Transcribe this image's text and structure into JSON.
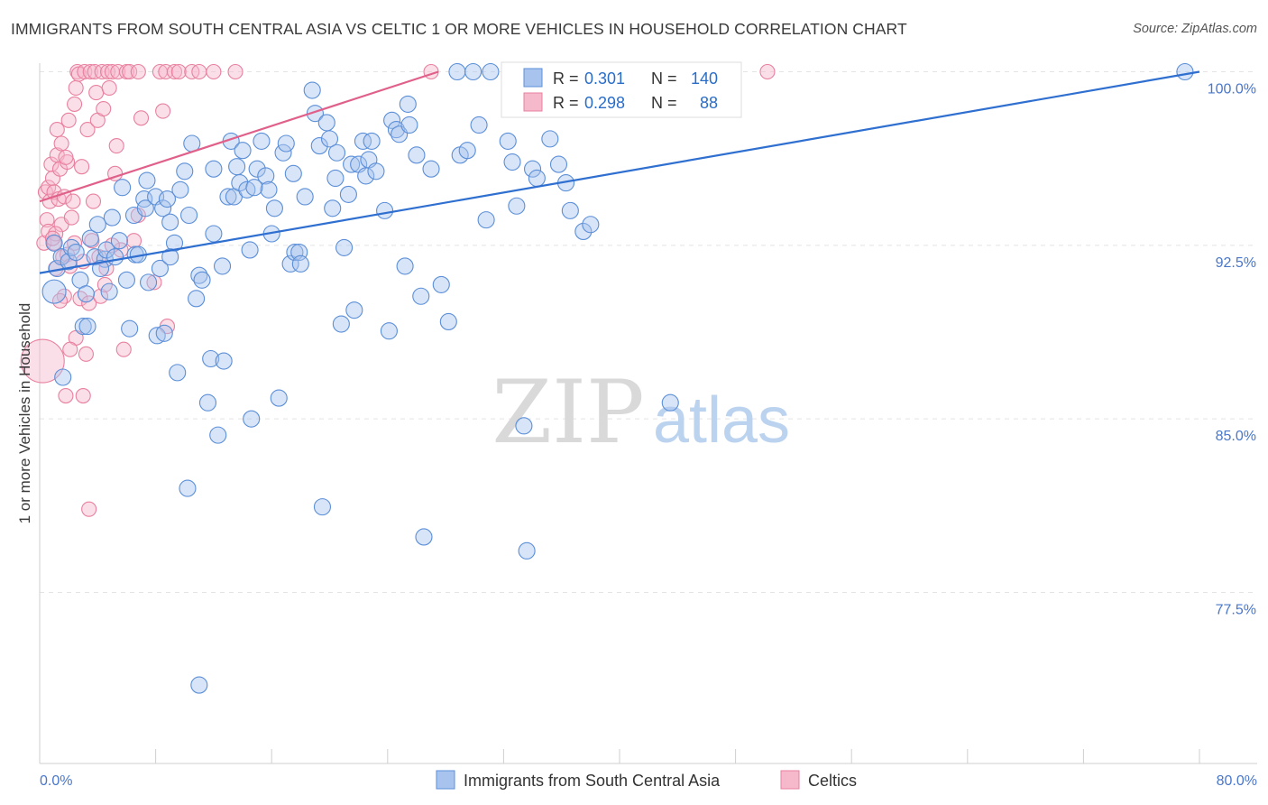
{
  "title": "IMMIGRANTS FROM SOUTH CENTRAL ASIA VS CELTIC 1 OR MORE VEHICLES IN HOUSEHOLD CORRELATION CHART",
  "source": "Source: ZipAtlas.com",
  "watermark": {
    "zip": "ZIP",
    "atlas": "atlas"
  },
  "colors": {
    "blue_fill": "#a8c4ee",
    "blue_stroke": "#5b8fd8",
    "blue_line": "#2f6fd0",
    "pink_fill": "#f6b9cc",
    "pink_stroke": "#e8809f",
    "pink_line": "#e0608a",
    "axis_label": "#4a77c9",
    "grid": "#dddddd"
  },
  "legend": {
    "row1": {
      "r_label": "R =",
      "r_value": "0.301",
      "n_label": "N =",
      "n_value": "140"
    },
    "row2": {
      "r_label": "R =",
      "r_value": "0.298",
      "n_label": "N =",
      "n_value": "88"
    }
  },
  "chart_data": {
    "type": "scatter",
    "title": "IMMIGRANTS FROM SOUTH CENTRAL ASIA VS CELTIC 1 OR MORE VEHICLES IN HOUSEHOLD CORRELATION CHART",
    "xlabel": "",
    "ylabel": "1 or more Vehicles in Household",
    "x_tick_labels": [
      "0.0%",
      "80.0%"
    ],
    "y_tick_labels": [
      "100.0%",
      "92.5%",
      "85.0%",
      "77.5%"
    ],
    "y_ticks": [
      100.0,
      92.5,
      85.0,
      77.5
    ],
    "xlim": [
      0,
      80
    ],
    "ylim": [
      71.5,
      100.5
    ],
    "grid": true,
    "legend_placement": "top-center",
    "series": [
      {
        "name": "Immigrants from South Central Asia",
        "color": "#5b8fd8",
        "trend": {
          "x": [
            0,
            80
          ],
          "y": [
            91.3,
            100.0
          ]
        },
        "points": [
          [
            1.0,
            92.6
          ],
          [
            1.2,
            91.5
          ],
          [
            1.5,
            92.0
          ],
          [
            1.0,
            90.5
          ],
          [
            1.6,
            86.8
          ],
          [
            2.0,
            91.8
          ],
          [
            2.2,
            92.4
          ],
          [
            2.8,
            91.0
          ],
          [
            3.0,
            89.0
          ],
          [
            3.2,
            90.4
          ],
          [
            3.5,
            92.8
          ],
          [
            3.8,
            92.0
          ],
          [
            4.0,
            93.4
          ],
          [
            4.5,
            91.9
          ],
          [
            4.6,
            92.3
          ],
          [
            4.8,
            90.5
          ],
          [
            5.0,
            93.7
          ],
          [
            5.2,
            92.0
          ],
          [
            5.5,
            92.7
          ],
          [
            5.7,
            95.0
          ],
          [
            6.0,
            91.0
          ],
          [
            6.2,
            88.9
          ],
          [
            6.5,
            93.8
          ],
          [
            6.6,
            92.1
          ],
          [
            6.8,
            92.1
          ],
          [
            7.2,
            94.5
          ],
          [
            7.3,
            94.1
          ],
          [
            7.4,
            95.3
          ],
          [
            7.5,
            90.9
          ],
          [
            8.0,
            94.6
          ],
          [
            8.1,
            88.6
          ],
          [
            8.3,
            91.5
          ],
          [
            8.5,
            94.1
          ],
          [
            8.6,
            88.7
          ],
          [
            8.8,
            94.5
          ],
          [
            9.0,
            93.5
          ],
          [
            9.3,
            92.6
          ],
          [
            9.5,
            87.0
          ],
          [
            9.7,
            94.9
          ],
          [
            10.0,
            95.7
          ],
          [
            10.2,
            82.0
          ],
          [
            10.3,
            93.8
          ],
          [
            10.5,
            96.9
          ],
          [
            10.8,
            90.2
          ],
          [
            11.0,
            91.2
          ],
          [
            11.2,
            91.0
          ],
          [
            11.6,
            85.7
          ],
          [
            11.8,
            87.6
          ],
          [
            12.0,
            95.8
          ],
          [
            12.3,
            84.3
          ],
          [
            12.6,
            91.6
          ],
          [
            12.7,
            87.5
          ],
          [
            13.0,
            94.6
          ],
          [
            13.2,
            97.0
          ],
          [
            13.4,
            94.6
          ],
          [
            13.6,
            95.9
          ],
          [
            13.8,
            95.2
          ],
          [
            14.0,
            96.6
          ],
          [
            14.3,
            94.9
          ],
          [
            14.5,
            92.3
          ],
          [
            14.6,
            85.0
          ],
          [
            15.0,
            95.8
          ],
          [
            15.3,
            97.0
          ],
          [
            15.6,
            95.5
          ],
          [
            15.8,
            94.9
          ],
          [
            16.0,
            93.0
          ],
          [
            16.2,
            94.1
          ],
          [
            16.5,
            85.9
          ],
          [
            16.8,
            96.5
          ],
          [
            17.0,
            96.9
          ],
          [
            17.3,
            91.7
          ],
          [
            17.5,
            95.6
          ],
          [
            17.6,
            92.2
          ],
          [
            17.9,
            92.2
          ],
          [
            18.0,
            91.7
          ],
          [
            18.3,
            94.6
          ],
          [
            18.8,
            99.2
          ],
          [
            19.0,
            98.2
          ],
          [
            19.3,
            96.8
          ],
          [
            19.5,
            81.2
          ],
          [
            19.8,
            97.8
          ],
          [
            20.0,
            97.1
          ],
          [
            20.2,
            94.1
          ],
          [
            20.4,
            95.4
          ],
          [
            20.8,
            89.1
          ],
          [
            21.0,
            92.4
          ],
          [
            21.3,
            94.7
          ],
          [
            21.5,
            96.0
          ],
          [
            21.7,
            89.7
          ],
          [
            22.0,
            96.0
          ],
          [
            22.3,
            97.0
          ],
          [
            22.5,
            95.5
          ],
          [
            22.7,
            96.2
          ],
          [
            23.2,
            95.7
          ],
          [
            23.8,
            94.0
          ],
          [
            24.1,
            88.8
          ],
          [
            24.3,
            97.9
          ],
          [
            24.6,
            97.5
          ],
          [
            24.8,
            97.3
          ],
          [
            25.2,
            91.6
          ],
          [
            25.4,
            98.6
          ],
          [
            25.5,
            97.7
          ],
          [
            26.0,
            96.4
          ],
          [
            26.3,
            90.3
          ],
          [
            26.5,
            79.9
          ],
          [
            27.7,
            90.8
          ],
          [
            28.2,
            89.2
          ],
          [
            28.8,
            100.0
          ],
          [
            29.0,
            96.4
          ],
          [
            29.5,
            96.6
          ],
          [
            29.9,
            100.0
          ],
          [
            30.3,
            97.7
          ],
          [
            30.8,
            93.6
          ],
          [
            31.1,
            100.0
          ],
          [
            32.3,
            97.0
          ],
          [
            32.6,
            96.1
          ],
          [
            32.9,
            94.2
          ],
          [
            33.4,
            84.7
          ],
          [
            33.6,
            79.3
          ],
          [
            34.0,
            95.8
          ],
          [
            34.3,
            95.4
          ],
          [
            35.0,
            100.0
          ],
          [
            35.2,
            97.1
          ],
          [
            35.8,
            96.0
          ],
          [
            36.3,
            95.2
          ],
          [
            36.6,
            94.0
          ],
          [
            37.5,
            93.1
          ],
          [
            38.0,
            93.4
          ],
          [
            43.5,
            85.7
          ],
          [
            79.0,
            100.0
          ],
          [
            11.0,
            73.5
          ],
          [
            3.3,
            89.0
          ],
          [
            2.5,
            92.2
          ],
          [
            4.2,
            91.5
          ],
          [
            9.0,
            92.0
          ],
          [
            12.0,
            93.0
          ],
          [
            14.8,
            95.0
          ],
          [
            20.5,
            96.5
          ],
          [
            22.9,
            97.0
          ],
          [
            27.0,
            95.8
          ]
        ]
      },
      {
        "name": "Celtic",
        "color": "#e8809f",
        "trend": {
          "x": [
            0,
            27.5
          ],
          "y": [
            94.4,
            100.0
          ]
        },
        "points": [
          [
            0.2,
            87.5
          ],
          [
            0.3,
            92.6
          ],
          [
            0.4,
            94.8
          ],
          [
            0.5,
            93.6
          ],
          [
            0.6,
            95.0
          ],
          [
            0.6,
            93.1
          ],
          [
            0.7,
            94.4
          ],
          [
            0.8,
            96.0
          ],
          [
            0.9,
            95.4
          ],
          [
            1.0,
            94.8
          ],
          [
            1.0,
            92.6
          ],
          [
            1.1,
            91.5
          ],
          [
            1.2,
            97.5
          ],
          [
            1.2,
            96.4
          ],
          [
            1.3,
            94.5
          ],
          [
            1.4,
            95.8
          ],
          [
            1.5,
            96.9
          ],
          [
            1.5,
            93.4
          ],
          [
            1.6,
            92.0
          ],
          [
            1.7,
            90.3
          ],
          [
            1.7,
            94.6
          ],
          [
            1.8,
            86.0
          ],
          [
            1.9,
            92.1
          ],
          [
            1.9,
            96.1
          ],
          [
            2.0,
            97.9
          ],
          [
            2.1,
            91.6
          ],
          [
            2.2,
            93.7
          ],
          [
            2.3,
            94.4
          ],
          [
            2.4,
            98.6
          ],
          [
            2.5,
            99.3
          ],
          [
            2.5,
            88.5
          ],
          [
            2.6,
            100.0
          ],
          [
            2.7,
            99.9
          ],
          [
            2.8,
            90.2
          ],
          [
            2.9,
            95.9
          ],
          [
            3.0,
            86.0
          ],
          [
            3.1,
            100.0
          ],
          [
            3.2,
            87.8
          ],
          [
            3.3,
            97.5
          ],
          [
            3.4,
            90.0
          ],
          [
            3.5,
            100.0
          ],
          [
            3.6,
            92.7
          ],
          [
            3.7,
            94.4
          ],
          [
            3.8,
            100.0
          ],
          [
            3.9,
            99.1
          ],
          [
            4.0,
            97.9
          ],
          [
            4.1,
            92.0
          ],
          [
            4.2,
            90.3
          ],
          [
            4.3,
            100.0
          ],
          [
            4.4,
            98.4
          ],
          [
            4.6,
            91.5
          ],
          [
            4.7,
            100.0
          ],
          [
            4.8,
            99.3
          ],
          [
            5.0,
            100.0
          ],
          [
            5.2,
            95.6
          ],
          [
            5.3,
            96.8
          ],
          [
            5.4,
            100.0
          ],
          [
            5.6,
            92.3
          ],
          [
            5.8,
            88.0
          ],
          [
            6.0,
            100.0
          ],
          [
            6.2,
            100.0
          ],
          [
            6.5,
            92.7
          ],
          [
            6.8,
            100.0
          ],
          [
            7.0,
            98.0
          ],
          [
            8.3,
            100.0
          ],
          [
            8.5,
            98.3
          ],
          [
            8.7,
            100.0
          ],
          [
            8.8,
            89.0
          ],
          [
            9.3,
            100.0
          ],
          [
            9.6,
            100.0
          ],
          [
            10.5,
            100.0
          ],
          [
            11.0,
            100.0
          ],
          [
            12.0,
            100.0
          ],
          [
            13.5,
            100.0
          ],
          [
            27.0,
            100.0
          ],
          [
            50.2,
            100.0
          ],
          [
            3.4,
            81.1
          ],
          [
            7.9,
            90.9
          ],
          [
            6.8,
            93.8
          ],
          [
            4.5,
            90.8
          ],
          [
            1.1,
            93.0
          ],
          [
            1.4,
            90.1
          ],
          [
            2.1,
            88.0
          ],
          [
            0.9,
            92.8
          ],
          [
            3.0,
            91.8
          ],
          [
            5.0,
            92.5
          ],
          [
            1.8,
            96.3
          ],
          [
            2.4,
            92.6
          ]
        ]
      }
    ]
  },
  "bottom_legend": {
    "series1": "Immigrants from South Central Asia",
    "series2": "Celtics"
  }
}
